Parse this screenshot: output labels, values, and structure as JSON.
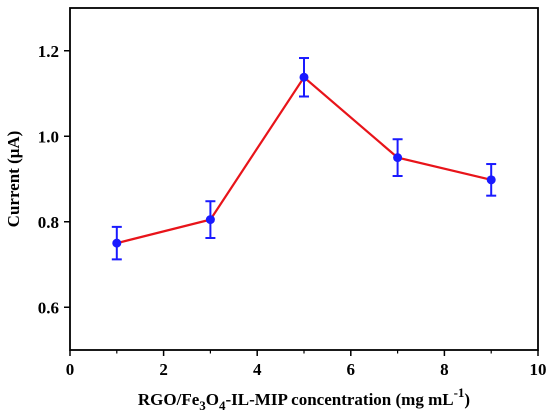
{
  "chart_data": {
    "type": "line",
    "title": "",
    "xlabel_parts": [
      "RGO/Fe",
      "3",
      "O",
      "4",
      "-IL-MIP concentration (mg mL",
      "-1",
      ")"
    ],
    "ylabel": "Current (μA)",
    "xlim": [
      0,
      10
    ],
    "ylim": [
      0.5,
      1.3
    ],
    "xticks": [
      0,
      2,
      4,
      6,
      8,
      10
    ],
    "xtick_labels": [
      "0",
      "2",
      "4",
      "6",
      "8",
      "10"
    ],
    "yticks": [
      0.6,
      0.8,
      1.0,
      1.2
    ],
    "ytick_labels": [
      "0.6",
      "0.8",
      "1.0",
      "1.2"
    ],
    "grid": false,
    "series": [
      {
        "x": [
          1,
          3,
          5,
          7,
          9
        ],
        "y": [
          0.75,
          0.805,
          1.138,
          0.95,
          0.898
        ],
        "yerr": [
          0.038,
          0.043,
          0.045,
          0.043,
          0.037
        ]
      }
    ],
    "colors": {
      "line": "#e8141a",
      "marker": "#1a1aff",
      "errorbar": "#1a1aff",
      "axis": "#000000"
    }
  }
}
